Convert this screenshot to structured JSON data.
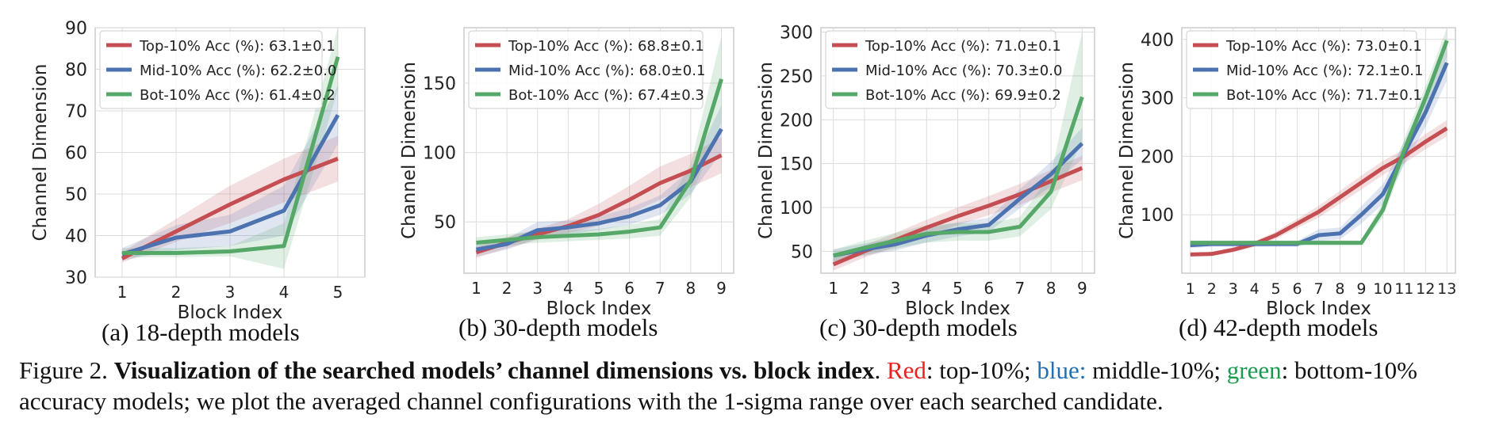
{
  "colors": {
    "top": "#c44e52",
    "mid": "#4c72b0",
    "bot": "#55a868",
    "caption_red": "#e8231f",
    "caption_blue": "#1f6fb4",
    "caption_green": "#1b9a4f"
  },
  "chart_data": [
    {
      "type": "line",
      "subcaption": "(a) 18-depth models",
      "xlabel": "Block Index",
      "ylabel": "Channel Dimension",
      "x": [
        1,
        2,
        3,
        4,
        5
      ],
      "xticks": [
        "1",
        "2",
        "3",
        "4",
        "5"
      ],
      "ylim": [
        30,
        90
      ],
      "yticks": [
        30,
        40,
        50,
        60,
        70,
        80,
        90
      ],
      "grid": true,
      "legend_position": "top-left",
      "series": [
        {
          "name": "Top-10% Acc (%): 63.1±0.1",
          "key": "top",
          "values": [
            34.5,
            41.0,
            47.5,
            53.5,
            58.5
          ],
          "lower": [
            33.5,
            38.5,
            43.0,
            48.0,
            53.0
          ],
          "upper": [
            36.0,
            44.0,
            52.0,
            58.5,
            64.0
          ]
        },
        {
          "name": "Mid-10% Acc (%): 62.2±0.0",
          "key": "mid",
          "values": [
            35.5,
            39.5,
            41.0,
            46.0,
            69.0
          ],
          "lower": [
            34.0,
            36.5,
            37.5,
            40.0,
            62.0
          ],
          "upper": [
            37.0,
            42.5,
            45.0,
            52.0,
            76.0
          ]
        },
        {
          "name": "Bot-10% Acc (%): 61.4±0.2",
          "key": "bot",
          "values": [
            35.8,
            35.8,
            36.2,
            37.5,
            83.0
          ],
          "lower": [
            34.8,
            34.8,
            35.0,
            32.0,
            75.0
          ],
          "upper": [
            37.0,
            37.0,
            37.5,
            43.0,
            90.0
          ]
        }
      ]
    },
    {
      "type": "line",
      "subcaption": "(b) 30-depth models",
      "xlabel": "Block Index",
      "ylabel": "Channel Dimension",
      "x": [
        1,
        2,
        3,
        4,
        5,
        6,
        7,
        8,
        9
      ],
      "xticks": [
        "1",
        "2",
        "3",
        "4",
        "5",
        "6",
        "7",
        "8",
        "9"
      ],
      "ylim": [
        13,
        190
      ],
      "yticks": [
        50,
        100,
        150
      ],
      "grid": true,
      "legend_position": "top-left",
      "series": [
        {
          "name": "Top-10% Acc (%): 68.8±0.1",
          "key": "top",
          "values": [
            28,
            35,
            41,
            47,
            55,
            66,
            78,
            87,
            98
          ],
          "lower": [
            24,
            31,
            37,
            42,
            47,
            56,
            66,
            75,
            85
          ],
          "upper": [
            32,
            39,
            45,
            52,
            63,
            76,
            90,
            99,
            111
          ]
        },
        {
          "name": "Mid-10% Acc (%): 68.0±0.1",
          "key": "mid",
          "values": [
            30,
            34,
            44,
            46,
            49,
            54,
            62,
            79,
            117
          ],
          "lower": [
            25,
            30,
            38,
            41,
            44,
            48,
            55,
            70,
            100
          ],
          "upper": [
            35,
            38,
            50,
            51,
            54,
            60,
            69,
            88,
            134
          ]
        },
        {
          "name": "Bot-10% Acc (%): 67.4±0.3",
          "key": "bot",
          "values": [
            35,
            37,
            39,
            40,
            41,
            43,
            46,
            80,
            153
          ],
          "lower": [
            31,
            33,
            35,
            36,
            37,
            38,
            40,
            68,
            122
          ],
          "upper": [
            39,
            41,
            43,
            44,
            45,
            48,
            52,
            92,
            184
          ]
        }
      ]
    },
    {
      "type": "line",
      "subcaption": "(c) 30-depth models",
      "xlabel": "Block Index",
      "ylabel": "Channel Dimension",
      "x": [
        1,
        2,
        3,
        4,
        5,
        6,
        7,
        8,
        9
      ],
      "xticks": [
        "1",
        "2",
        "3",
        "4",
        "5",
        "6",
        "7",
        "8",
        "9"
      ],
      "ylim": [
        25,
        305
      ],
      "yticks": [
        50,
        100,
        150,
        200,
        250,
        300
      ],
      "grid": true,
      "legend_position": "top-left",
      "series": [
        {
          "name": "Top-10% Acc (%): 71.0±0.1",
          "key": "top",
          "values": [
            35,
            50,
            63,
            77,
            90,
            102,
            115,
            130,
            145
          ],
          "lower": [
            28,
            43,
            55,
            68,
            80,
            91,
            103,
            117,
            131
          ],
          "upper": [
            42,
            57,
            71,
            86,
            100,
            113,
            127,
            143,
            159
          ]
        },
        {
          "name": "Mid-10% Acc (%): 70.3±0.0",
          "key": "mid",
          "values": [
            45,
            52,
            58,
            68,
            75,
            80,
            110,
            138,
            173
          ],
          "lower": [
            38,
            45,
            51,
            60,
            67,
            72,
            99,
            124,
            155
          ],
          "upper": [
            52,
            59,
            65,
            76,
            83,
            88,
            121,
            152,
            191
          ]
        },
        {
          "name": "Bot-10% Acc (%): 69.9±0.2",
          "key": "bot",
          "values": [
            45,
            54,
            62,
            70,
            72,
            72,
            78,
            118,
            226
          ],
          "lower": [
            38,
            46,
            53,
            60,
            62,
            62,
            67,
            98,
            176
          ],
          "upper": [
            52,
            62,
            71,
            80,
            82,
            82,
            89,
            138,
            300
          ]
        }
      ]
    },
    {
      "type": "line",
      "subcaption": "(d) 42-depth models",
      "xlabel": "Block Index",
      "ylabel": "Channel Dimension",
      "x": [
        1,
        2,
        3,
        4,
        5,
        6,
        7,
        8,
        9,
        10,
        11,
        12,
        13
      ],
      "xticks": [
        "1",
        "2",
        "3",
        "4",
        "5",
        "6",
        "7",
        "8",
        "9",
        "10",
        "11",
        "12",
        "13"
      ],
      "ylim": [
        0,
        420
      ],
      "yticks": [
        100,
        200,
        300,
        400
      ],
      "grid": true,
      "legend_position": "top-left",
      "series": [
        {
          "name": "Top-10% Acc (%): 73.0±0.1",
          "key": "top",
          "values": [
            32,
            33,
            40,
            50,
            65,
            85,
            105,
            130,
            155,
            180,
            200,
            225,
            248
          ],
          "lower": [
            29,
            30,
            36,
            45,
            59,
            77,
            95,
            119,
            143,
            168,
            188,
            212,
            234
          ],
          "upper": [
            35,
            36,
            44,
            55,
            71,
            93,
            115,
            141,
            167,
            192,
            212,
            238,
            262
          ]
        },
        {
          "name": "Mid-10% Acc (%): 72.1±0.1",
          "key": "mid",
          "values": [
            48,
            50,
            50,
            50,
            50,
            50,
            65,
            68,
            100,
            135,
            205,
            275,
            360
          ],
          "lower": [
            43,
            45,
            45,
            45,
            45,
            45,
            55,
            58,
            85,
            118,
            185,
            250,
            330
          ],
          "upper": [
            53,
            55,
            55,
            55,
            55,
            55,
            75,
            78,
            115,
            152,
            225,
            300,
            390
          ]
        },
        {
          "name": "Bot-10% Acc (%): 71.7±0.1",
          "key": "bot",
          "values": [
            52,
            52,
            52,
            52,
            52,
            52,
            52,
            52,
            52,
            108,
            210,
            300,
            398
          ],
          "lower": [
            48,
            48,
            48,
            48,
            48,
            48,
            48,
            48,
            48,
            95,
            190,
            280,
            370
          ],
          "upper": [
            56,
            56,
            56,
            56,
            56,
            56,
            56,
            56,
            56,
            121,
            230,
            320,
            420
          ]
        }
      ]
    }
  ],
  "caption": {
    "prefix": "Figure 2. ",
    "bold": "Visualization of the searched models’ channel dimensions vs. block index",
    "after_bold": ". ",
    "red_word": "Red",
    "after_red": ": top-10%; ",
    "blue_word": "blue:",
    "after_blue": " middle-10%; ",
    "green_word": "green",
    "after_green": ": bottom-10% accuracy models; we plot the averaged channel configurations with the 1-sigma range over each searched candidate."
  }
}
